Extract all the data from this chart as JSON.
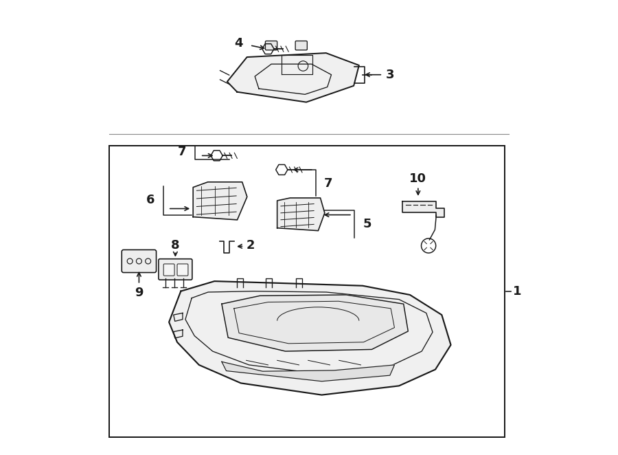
{
  "background_color": "#ffffff",
  "line_color": "#1a1a1a",
  "line_width": 1.2,
  "fig_width": 9.0,
  "fig_height": 6.62,
  "dpi": 100
}
